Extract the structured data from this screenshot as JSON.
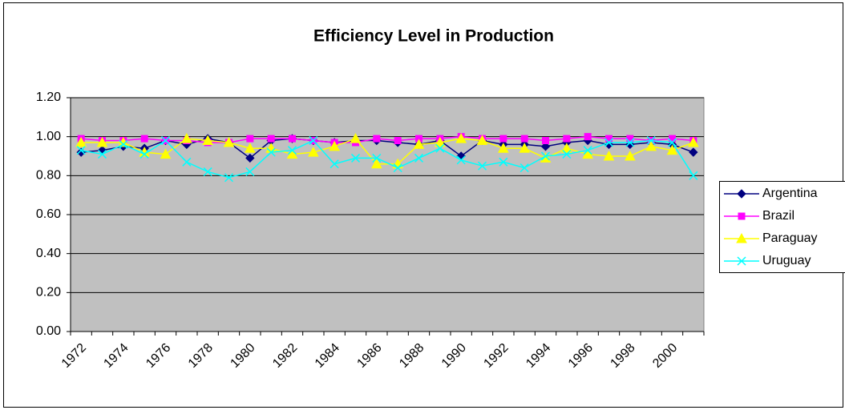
{
  "chart_data": {
    "type": "line",
    "title": "Efficiency Level in Production",
    "categories": [
      "1972",
      null,
      "1974",
      null,
      "1976",
      null,
      "1978",
      null,
      "1980",
      null,
      "1982",
      null,
      "1984",
      null,
      "1986",
      null,
      "1988",
      null,
      "1990",
      null,
      "1992",
      null,
      "1994",
      null,
      "1996",
      null,
      "1998",
      null,
      "2000",
      null
    ],
    "series": [
      {
        "name": "Argentina",
        "color": "#000080",
        "marker": "diamond",
        "values": [
          0.92,
          0.93,
          0.95,
          0.94,
          0.98,
          0.96,
          0.99,
          0.97,
          0.89,
          0.98,
          0.99,
          0.98,
          0.97,
          0.98,
          0.98,
          0.97,
          0.96,
          0.98,
          0.9,
          0.98,
          0.96,
          0.96,
          0.95,
          0.97,
          0.98,
          0.96,
          0.96,
          0.97,
          0.96,
          0.92
        ]
      },
      {
        "name": "Brazil",
        "color": "#ff00ff",
        "marker": "square",
        "values": [
          0.99,
          0.98,
          0.98,
          0.99,
          0.98,
          0.98,
          0.97,
          0.97,
          0.99,
          0.99,
          0.99,
          0.98,
          0.97,
          0.97,
          0.99,
          0.98,
          0.99,
          0.99,
          1.0,
          0.99,
          0.99,
          0.99,
          0.98,
          0.99,
          1.0,
          0.99,
          0.99,
          0.98,
          0.99,
          0.98
        ]
      },
      {
        "name": "Paraguay",
        "color": "#ffff00",
        "marker": "triangle",
        "values": [
          0.97,
          0.97,
          0.97,
          0.92,
          0.91,
          0.99,
          0.98,
          0.97,
          0.94,
          0.94,
          0.91,
          0.92,
          0.95,
          0.99,
          0.86,
          0.86,
          0.96,
          0.97,
          0.99,
          0.98,
          0.94,
          0.94,
          0.89,
          0.94,
          0.91,
          0.9,
          0.9,
          0.95,
          0.93,
          0.97
        ]
      },
      {
        "name": "Uruguay",
        "color": "#00ffff",
        "marker": "x",
        "values": [
          0.93,
          0.91,
          0.96,
          0.91,
          0.98,
          0.87,
          0.82,
          0.79,
          0.82,
          0.92,
          0.93,
          0.98,
          0.86,
          0.89,
          0.89,
          0.84,
          0.89,
          0.94,
          0.88,
          0.85,
          0.87,
          0.84,
          0.9,
          0.91,
          0.93,
          0.97,
          0.97,
          0.98,
          0.97,
          0.8
        ]
      }
    ],
    "ylim": [
      0,
      1.2
    ],
    "yticks": [
      {
        "value": 0,
        "label": "0.00"
      },
      {
        "value": 0.2,
        "label": "0.20"
      },
      {
        "value": 0.4,
        "label": "0.40"
      },
      {
        "value": 0.6,
        "label": "0.60"
      },
      {
        "value": 0.8,
        "label": "0.80"
      },
      {
        "value": 1,
        "label": "1.00"
      },
      {
        "value": 1.2,
        "label": "1.20"
      }
    ],
    "grid": true,
    "legend": "right"
  }
}
